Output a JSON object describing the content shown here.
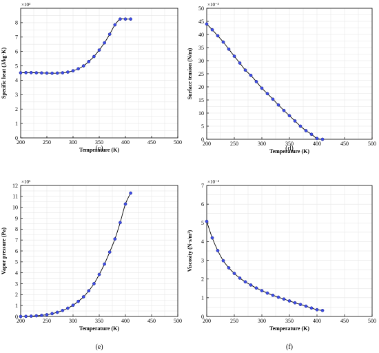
{
  "chart_data": [
    {
      "type": "line",
      "panel": "(c)",
      "xlabel": "Temperature (K)",
      "ylabel": "Specific heat (J/kg·K)",
      "exponent": "×10³",
      "xlim": [
        200,
        500
      ],
      "xticks": [
        200,
        250,
        300,
        350,
        400,
        450,
        500
      ],
      "ylim": [
        0,
        9
      ],
      "yticks": [
        0,
        1,
        2,
        3,
        4,
        5,
        6,
        7,
        8
      ],
      "grid": true,
      "x": [
        200,
        210,
        220,
        230,
        240,
        250,
        260,
        270,
        280,
        290,
        300,
        310,
        320,
        330,
        340,
        350,
        360,
        370,
        380,
        390,
        400,
        410
      ],
      "y": [
        4.52,
        4.53,
        4.53,
        4.52,
        4.51,
        4.5,
        4.49,
        4.5,
        4.52,
        4.57,
        4.66,
        4.8,
        5.0,
        5.3,
        5.65,
        6.1,
        6.6,
        7.2,
        7.85,
        8.25,
        8.25,
        8.25
      ]
    },
    {
      "type": "line",
      "panel": "(d)",
      "xlabel": "Temperature (K)",
      "ylabel": "Surface tension (N/m)",
      "exponent": "×10⁻³",
      "xlim": [
        200,
        500
      ],
      "xticks": [
        200,
        250,
        300,
        350,
        400,
        450,
        500
      ],
      "ylim": [
        0,
        50
      ],
      "yticks": [
        0,
        5,
        10,
        15,
        20,
        25,
        30,
        35,
        40,
        45,
        50
      ],
      "grid": true,
      "x": [
        200,
        210,
        220,
        230,
        240,
        250,
        260,
        270,
        280,
        290,
        300,
        310,
        320,
        330,
        340,
        350,
        360,
        370,
        380,
        390,
        400,
        410
      ],
      "y": [
        44.0,
        41.8,
        39.5,
        37.1,
        34.4,
        31.7,
        29.1,
        26.4,
        24.4,
        22.0,
        19.5,
        17.4,
        15.3,
        13.1,
        11.0,
        9.0,
        7.0,
        5.0,
        3.3,
        1.9,
        0.3,
        0.0
      ]
    },
    {
      "type": "line",
      "panel": "(e)",
      "xlabel": "Temperature (K)",
      "ylabel": "Vapor pressure (Pa)",
      "exponent": "×10⁶",
      "xlim": [
        200,
        500
      ],
      "xticks": [
        200,
        250,
        300,
        350,
        400,
        450,
        500
      ],
      "ylim": [
        0,
        12
      ],
      "yticks": [
        0,
        1,
        2,
        3,
        4,
        5,
        6,
        7,
        8,
        9,
        10,
        11,
        12
      ],
      "grid": true,
      "x": [
        200,
        210,
        220,
        230,
        240,
        250,
        260,
        270,
        280,
        290,
        300,
        310,
        320,
        330,
        340,
        350,
        360,
        370,
        380,
        390,
        400,
        410
      ],
      "y": [
        0.0,
        0.01,
        0.03,
        0.06,
        0.1,
        0.16,
        0.26,
        0.38,
        0.55,
        0.76,
        1.03,
        1.38,
        1.8,
        2.35,
        3.0,
        3.85,
        4.8,
        5.9,
        7.1,
        8.6,
        10.3,
        11.3
      ]
    },
    {
      "type": "line",
      "panel": "(f)",
      "xlabel": "Temperature (K)",
      "ylabel": "Viscosity (N·s/m²)",
      "exponent": "×10⁻⁴",
      "xlim": [
        200,
        500
      ],
      "xticks": [
        200,
        250,
        300,
        350,
        400,
        450,
        500
      ],
      "ylim": [
        0,
        7
      ],
      "yticks": [
        0,
        1,
        2,
        3,
        4,
        5,
        6,
        7
      ],
      "grid": true,
      "x": [
        200,
        210,
        220,
        230,
        240,
        250,
        260,
        270,
        280,
        290,
        300,
        310,
        320,
        330,
        340,
        350,
        360,
        370,
        380,
        390,
        400,
        410
      ],
      "y": [
        5.08,
        4.2,
        3.52,
        2.98,
        2.6,
        2.3,
        2.05,
        1.85,
        1.68,
        1.52,
        1.38,
        1.25,
        1.13,
        1.03,
        0.93,
        0.83,
        0.73,
        0.64,
        0.55,
        0.45,
        0.36,
        0.32
      ]
    }
  ]
}
